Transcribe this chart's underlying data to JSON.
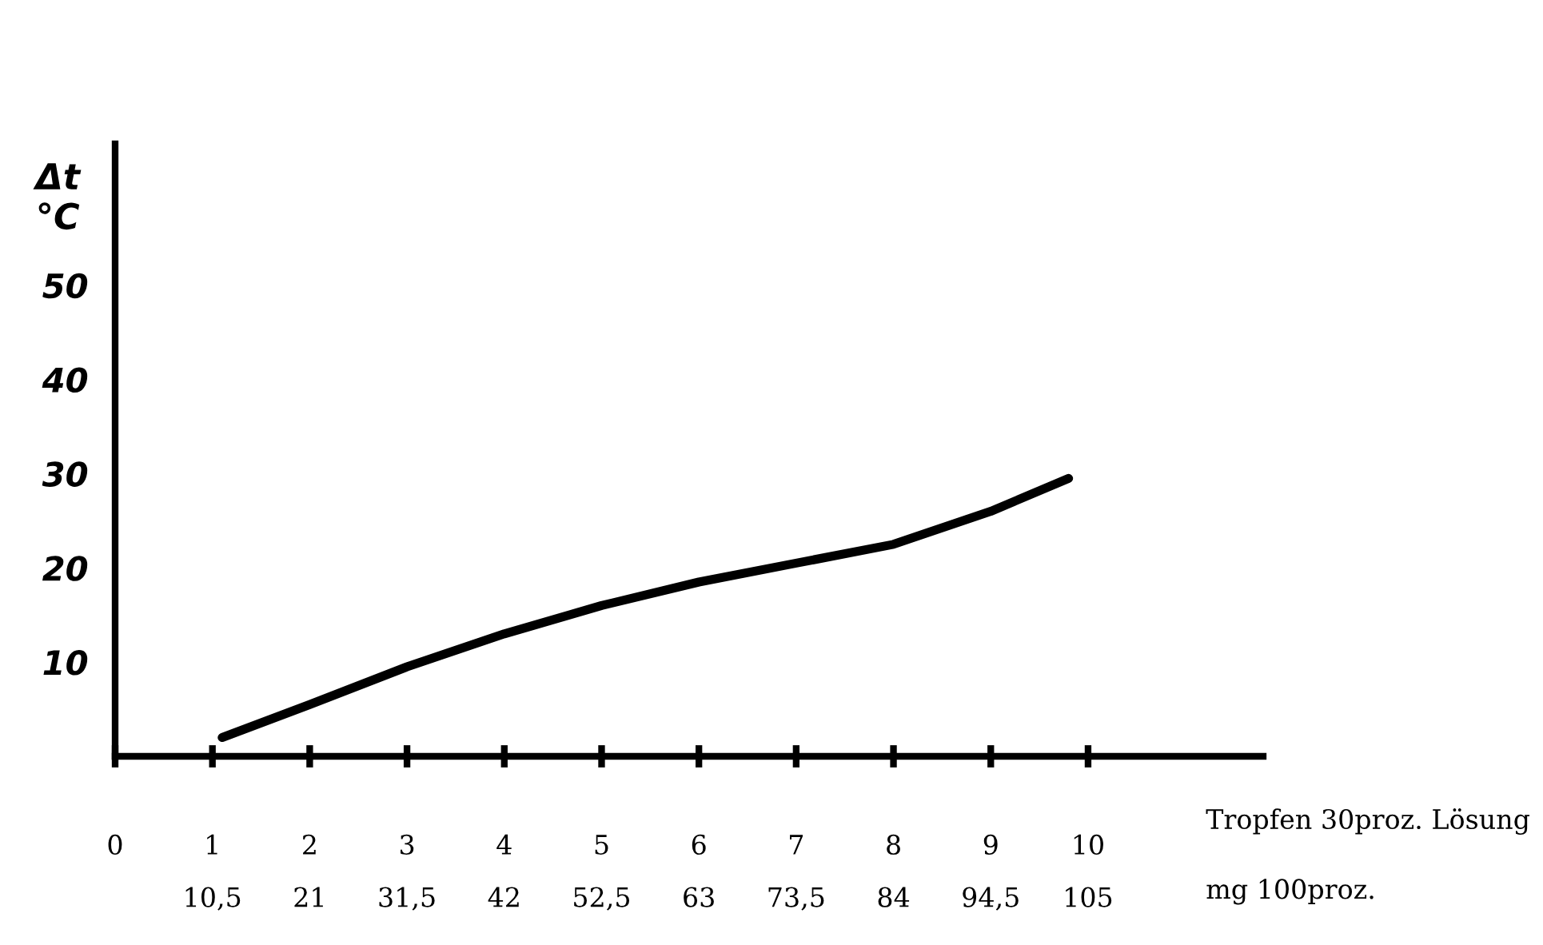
{
  "chart_data": {
    "type": "line",
    "ylabel": "Δt\n°C",
    "xlabel": "Tropfen 30proz. Lösung",
    "x2label": "mg 100proz.",
    "x": [
      1.1,
      2,
      3,
      4,
      5,
      6,
      7,
      8,
      9,
      9.8
    ],
    "series": [
      {
        "color": "#000000",
        "values": [
          2,
          5.5,
          9.5,
          13,
          16,
          18.5,
          20.5,
          22.5,
          26,
          29.5
        ]
      }
    ],
    "xlim": [
      0,
      11.8
    ],
    "xticks": [
      0,
      1,
      2,
      3,
      4,
      5,
      6,
      7,
      8,
      9,
      10
    ],
    "x2lim": [
      0,
      123.9
    ],
    "x2ticks": [
      {
        "value": 10.5,
        "label": "10,5"
      },
      21,
      {
        "value": 31.5,
        "label": "31,5"
      },
      42,
      {
        "value": 52.5,
        "label": "52,5"
      },
      63,
      {
        "value": 73.5,
        "label": "73,5"
      },
      84,
      {
        "value": 94.5,
        "label": "94,5"
      },
      105
    ],
    "ylim": [
      0,
      65
    ],
    "yticks": [
      10,
      20,
      30,
      40,
      50
    ],
    "grid": false,
    "marker": "none",
    "line_style": "solid"
  }
}
